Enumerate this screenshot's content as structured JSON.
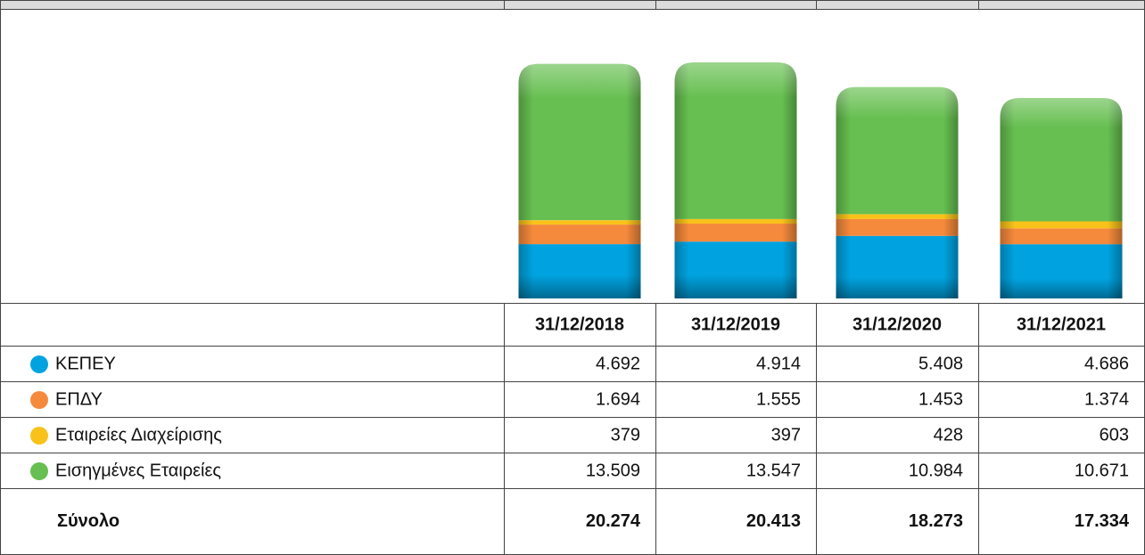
{
  "chart_data": {
    "type": "bar",
    "stacked": true,
    "categories": [
      "31/12/2018",
      "31/12/2019",
      "31/12/2020",
      "31/12/2021"
    ],
    "series": [
      {
        "name": "ΚΕΠΕΥ",
        "color": "#00a3e0",
        "values": [
          4692,
          4914,
          5408,
          4686
        ],
        "value_labels": [
          "4.692",
          "4.914",
          "5.408",
          "4.686"
        ]
      },
      {
        "name": "ΕΠΔΥ",
        "color": "#f58a3c",
        "values": [
          1694,
          1555,
          1453,
          1374
        ],
        "value_labels": [
          "1.694",
          "1.555",
          "1.453",
          "1.374"
        ]
      },
      {
        "name": "Εταιρείες Διαχείρισης",
        "color": "#f9c21a",
        "values": [
          379,
          397,
          428,
          603
        ],
        "value_labels": [
          "379",
          "397",
          "428",
          "603"
        ]
      },
      {
        "name": "Εισηγμένες Εταιρείες",
        "color": "#66bf50",
        "values": [
          13509,
          13547,
          10984,
          10671
        ],
        "value_labels": [
          "13.509",
          "13.547",
          "10.984",
          "10.671"
        ]
      }
    ],
    "totals": {
      "name": "Σύνολο",
      "values": [
        20274,
        20413,
        18273,
        17334
      ],
      "value_labels": [
        "20.274",
        "20.413",
        "18.273",
        "17.334"
      ]
    }
  }
}
